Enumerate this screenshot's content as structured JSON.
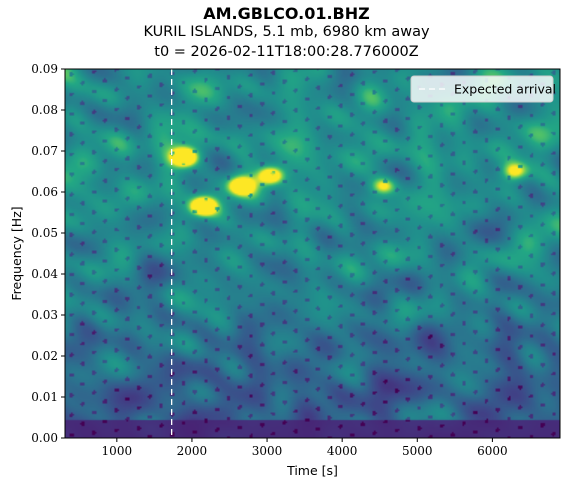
{
  "header": {
    "station": "AM.GBLCO.01.BHZ",
    "event": "KURIL ISLANDS, 5.1 mb, 6980 km away",
    "t0": "t0 = 2026-02-11T18:00:28.776000Z"
  },
  "chart_data": {
    "type": "heatmap",
    "title": "AM.GBLCO.01.BHZ",
    "xlabel": "Time [s]",
    "ylabel": "Frequency [Hz]",
    "xlim": [
      310,
      6900
    ],
    "ylim": [
      0,
      0.09
    ],
    "xticks": [
      "1000",
      "2000",
      "3000",
      "4000",
      "5000",
      "6000"
    ],
    "yticks": [
      "0.00",
      "0.01",
      "0.02",
      "0.03",
      "0.04",
      "0.05",
      "0.06",
      "0.07",
      "0.08",
      "0.09"
    ],
    "colormap": "viridis",
    "expected_arrival_s": 1730,
    "legend": {
      "position": "top-right",
      "entries": [
        "Expected arrival"
      ]
    },
    "hotspots": [
      {
        "t": 2150,
        "f": 0.0565,
        "power": 1.0
      },
      {
        "t": 1900,
        "f": 0.0685,
        "power": 0.95
      },
      {
        "t": 3050,
        "f": 0.064,
        "power": 0.8
      },
      {
        "t": 2650,
        "f": 0.0615,
        "power": 0.65
      },
      {
        "t": 4550,
        "f": 0.0615,
        "power": 0.6
      },
      {
        "t": 6300,
        "f": 0.065,
        "power": 0.55
      }
    ]
  },
  "colors": {
    "arrival_line": "#ffffff",
    "viridis_low": "#440154",
    "viridis_high": "#fde725"
  }
}
